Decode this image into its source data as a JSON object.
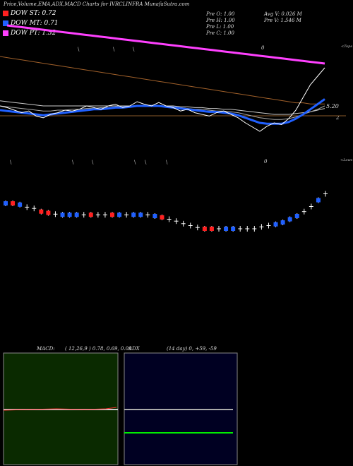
{
  "header": {
    "title": "Price,Volume,EMA,ADX,MACD Charts for IVRCLINFRA MunafaSutra.com"
  },
  "legend": [
    {
      "label": "DOW ST: 0.72",
      "color": "#ff2020"
    },
    {
      "label": "DOW MT: 0.71",
      "color": "#2060ff"
    },
    {
      "label": "DOW PT: 1.52",
      "color": "#ff40ff"
    }
  ],
  "stats_left": [
    "Pre O: 1.00",
    "Pre H: 1.00",
    "Pre L: 1.00",
    "Pre C: 1.00"
  ],
  "stats_right": [
    "Avg V: 0.026 M",
    "Pre V: 1.546 M"
  ],
  "labels": {
    "top_marker": "0",
    "side_top": "<Tops",
    "side_low": "<Lows",
    "price_label": "5.20",
    "price_side": "2",
    "low_marker": "0"
  },
  "macd_panel": {
    "title": "MACD:",
    "params": "( 12,26,9 ) 0.78, 0.69, 0.09"
  },
  "adx_panel": {
    "title": "ADX",
    "params": "(14 day) 0, +59, -59"
  },
  "chart_data": {
    "type": "line",
    "title": "Price,Volume,EMA,ADX,MACD Charts for IVRCLINFRA MunafaSutra.com",
    "xlabel": "",
    "ylabel": "",
    "series": [
      {
        "name": "DOW PT",
        "values": [
          1.52
        ]
      },
      {
        "name": "DOW MT",
        "values": [
          0.71
        ]
      },
      {
        "name": "DOW ST",
        "values": [
          0.72
        ]
      }
    ],
    "price_series": [
      0.5,
      0.48,
      0.45,
      0.42,
      0.44,
      0.38,
      0.36,
      0.4,
      0.42,
      0.45,
      0.44,
      0.46,
      0.5,
      0.48,
      0.46,
      0.5,
      0.52,
      0.48,
      0.5,
      0.55,
      0.52,
      0.5,
      0.54,
      0.5,
      0.48,
      0.44,
      0.46,
      0.42,
      0.4,
      0.38,
      0.42,
      0.44,
      0.4,
      0.36,
      0.3,
      0.25,
      0.2,
      0.26,
      0.3,
      0.28,
      0.35,
      0.45,
      0.6,
      0.75,
      0.85,
      0.95
    ],
    "ema_short": [
      0.45,
      0.44,
      0.43,
      0.42,
      0.41,
      0.4,
      0.39,
      0.4,
      0.41,
      0.42,
      0.43,
      0.44,
      0.45,
      0.46,
      0.46,
      0.47,
      0.48,
      0.48,
      0.49,
      0.5,
      0.5,
      0.5,
      0.5,
      0.49,
      0.48,
      0.47,
      0.46,
      0.45,
      0.44,
      0.43,
      0.43,
      0.42,
      0.41,
      0.39,
      0.36,
      0.33,
      0.3,
      0.29,
      0.29,
      0.29,
      0.31,
      0.35,
      0.4,
      0.46,
      0.52,
      0.58
    ],
    "ema_mid": [
      0.5,
      0.49,
      0.48,
      0.47,
      0.46,
      0.45,
      0.44,
      0.44,
      0.45,
      0.45,
      0.46,
      0.46,
      0.47,
      0.47,
      0.48,
      0.48,
      0.49,
      0.49,
      0.49,
      0.5,
      0.5,
      0.5,
      0.5,
      0.49,
      0.49,
      0.48,
      0.47,
      0.46,
      0.46,
      0.45,
      0.44,
      0.44,
      0.43,
      0.42,
      0.4,
      0.38,
      0.36,
      0.35,
      0.34,
      0.34,
      0.35,
      0.37,
      0.4,
      0.43,
      0.46,
      0.5
    ],
    "ema_long": [
      0.56,
      0.55,
      0.54,
      0.53,
      0.52,
      0.51,
      0.5,
      0.5,
      0.5,
      0.5,
      0.5,
      0.5,
      0.5,
      0.5,
      0.5,
      0.5,
      0.5,
      0.5,
      0.5,
      0.5,
      0.5,
      0.5,
      0.5,
      0.5,
      0.5,
      0.49,
      0.49,
      0.48,
      0.48,
      0.47,
      0.47,
      0.46,
      0.46,
      0.45,
      0.44,
      0.43,
      0.42,
      0.41,
      0.4,
      0.4,
      0.4,
      0.41,
      0.42,
      0.43,
      0.45,
      0.47
    ],
    "dow_pt_line": [
      0.95,
      0.94,
      0.93,
      0.92,
      0.91,
      0.9,
      0.89,
      0.88,
      0.87,
      0.86,
      0.85,
      0.84,
      0.83,
      0.82,
      0.81,
      0.8,
      0.79,
      0.78,
      0.77,
      0.76,
      0.75,
      0.74,
      0.73,
      0.72,
      0.71,
      0.7,
      0.69,
      0.68,
      0.67,
      0.66,
      0.65,
      0.64,
      0.63,
      0.62,
      0.61,
      0.6,
      0.59,
      0.58,
      0.57,
      0.56,
      0.55,
      0.54,
      0.53,
      0.52,
      0.51,
      0.5
    ],
    "brown_line": [
      0.82,
      0.81,
      0.8,
      0.79,
      0.78,
      0.77,
      0.76,
      0.75,
      0.74,
      0.73,
      0.72,
      0.71,
      0.7,
      0.69,
      0.68,
      0.67,
      0.66,
      0.65,
      0.64,
      0.63,
      0.62,
      0.61,
      0.6,
      0.59,
      0.58,
      0.57,
      0.56,
      0.55,
      0.54,
      0.53,
      0.52,
      0.51,
      0.5,
      0.49,
      0.48,
      0.47,
      0.46,
      0.45,
      0.44,
      0.43,
      0.42,
      0.41,
      0.41,
      0.4,
      0.4,
      0.4
    ],
    "candles": [
      {
        "color": "blue",
        "level": 0.8
      },
      {
        "color": "red",
        "level": 0.8
      },
      {
        "color": "blue",
        "level": 0.78
      },
      {
        "color": "none",
        "level": 0.74
      },
      {
        "color": "none",
        "level": 0.72
      },
      {
        "color": "red",
        "level": 0.67
      },
      {
        "color": "red",
        "level": 0.65
      },
      {
        "color": "none",
        "level": 0.63
      },
      {
        "color": "blue",
        "level": 0.62
      },
      {
        "color": "blue",
        "level": 0.62
      },
      {
        "color": "blue",
        "level": 0.62
      },
      {
        "color": "none",
        "level": 0.62
      },
      {
        "color": "red",
        "level": 0.62
      },
      {
        "color": "none",
        "level": 0.62
      },
      {
        "color": "none",
        "level": 0.62
      },
      {
        "color": "red",
        "level": 0.62
      },
      {
        "color": "blue",
        "level": 0.62
      },
      {
        "color": "none",
        "level": 0.62
      },
      {
        "color": "blue",
        "level": 0.62
      },
      {
        "color": "blue",
        "level": 0.62
      },
      {
        "color": "none",
        "level": 0.62
      },
      {
        "color": "blue",
        "level": 0.6
      },
      {
        "color": "red",
        "level": 0.58
      },
      {
        "color": "none",
        "level": 0.55
      },
      {
        "color": "none",
        "level": 0.52
      },
      {
        "color": "none",
        "level": 0.48
      },
      {
        "color": "none",
        "level": 0.45
      },
      {
        "color": "none",
        "level": 0.42
      },
      {
        "color": "red",
        "level": 0.4
      },
      {
        "color": "red",
        "level": 0.4
      },
      {
        "color": "none",
        "level": 0.4
      },
      {
        "color": "blue",
        "level": 0.4
      },
      {
        "color": "blue",
        "level": 0.4
      },
      {
        "color": "none",
        "level": 0.4
      },
      {
        "color": "none",
        "level": 0.4
      },
      {
        "color": "none",
        "level": 0.4
      },
      {
        "color": "none",
        "level": 0.43
      },
      {
        "color": "none",
        "level": 0.45
      },
      {
        "color": "blue",
        "level": 0.47
      },
      {
        "color": "blue",
        "level": 0.5
      },
      {
        "color": "blue",
        "level": 0.55
      },
      {
        "color": "blue",
        "level": 0.6
      },
      {
        "color": "none",
        "level": 0.67
      },
      {
        "color": "none",
        "level": 0.75
      },
      {
        "color": "blue",
        "level": 0.85
      },
      {
        "color": "none",
        "level": 0.95
      }
    ],
    "macd": {
      "macd_line": 0.78,
      "signal": 0.69,
      "hist": 0.09
    },
    "adx": {
      "adx": 0,
      "plus_di": 59,
      "minus_di": 59
    }
  }
}
